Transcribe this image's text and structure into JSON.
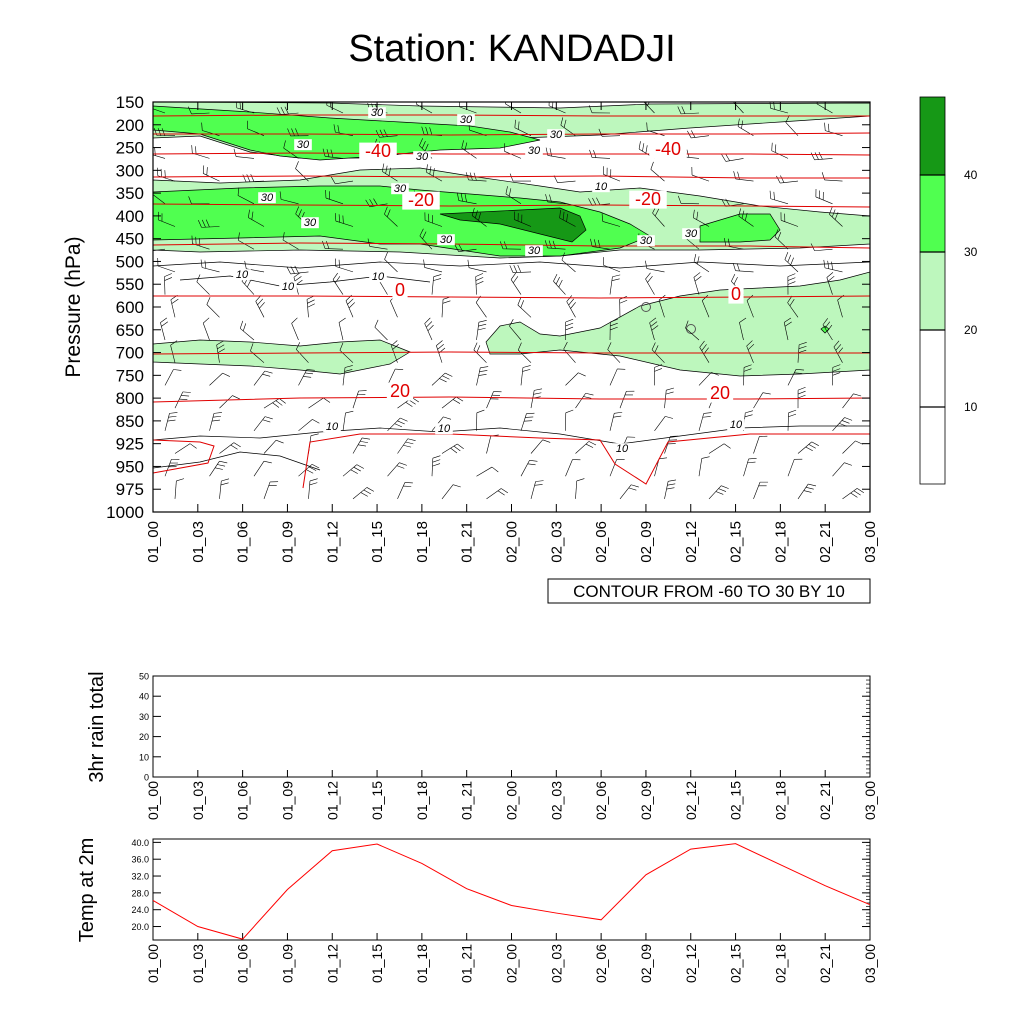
{
  "title": "Station: KANDADJI",
  "chart_data": [
    {
      "type": "heatmap",
      "ylabel": "Pressure (hPa)",
      "y_ticks": [
        150,
        200,
        250,
        300,
        350,
        400,
        450,
        500,
        550,
        600,
        650,
        700,
        750,
        800,
        850,
        925,
        950,
        975,
        1000
      ],
      "x_ticks": [
        "01_00",
        "01_03",
        "01_06",
        "01_09",
        "01_12",
        "01_15",
        "01_18",
        "01_21",
        "02_00",
        "02_03",
        "02_06",
        "02_09",
        "02_12",
        "02_15",
        "02_18",
        "02_21",
        "03_00"
      ],
      "contour_info": "CONTOUR FROM -60 TO 30 BY 10",
      "colorbar": {
        "levels": [
          10,
          20,
          30,
          40
        ],
        "colors": [
          "#ffffff",
          "#ffffff",
          "#bdf7bd",
          "#50ff50",
          "#169816"
        ]
      },
      "temperature_labels": [
        "-40",
        "-40",
        "-20",
        "-20",
        "0",
        "0",
        "20",
        "20"
      ],
      "shading_labels": [
        "30",
        "30",
        "30",
        "30",
        "30",
        "30",
        "30",
        "30",
        "30",
        "30",
        "30",
        "30",
        "30",
        "10",
        "10",
        "10",
        "10",
        "10",
        "10",
        "10",
        "10"
      ]
    },
    {
      "type": "line",
      "ylabel": "3hr rain total",
      "ylim": [
        0,
        50
      ],
      "y_ticks": [
        "0",
        "10",
        "20",
        "30",
        "40",
        "50"
      ],
      "x_ticks": [
        "01_00",
        "01_03",
        "01_06",
        "01_09",
        "01_12",
        "01_15",
        "01_18",
        "01_21",
        "02_00",
        "02_03",
        "02_06",
        "02_09",
        "02_12",
        "02_15",
        "02_18",
        "02_21",
        "03_00"
      ],
      "values": [
        0,
        0,
        0,
        0,
        0,
        0,
        0,
        0,
        0,
        0,
        0,
        0,
        0,
        0,
        0,
        0,
        0
      ]
    },
    {
      "type": "line",
      "ylabel": "Temp at 2m",
      "ylim": [
        16.8,
        40.8
      ],
      "y_ticks": [
        "20.0",
        "24.0",
        "28.0",
        "32.0",
        "36.0",
        "40.0"
      ],
      "x_ticks": [
        "01_00",
        "01_03",
        "01_06",
        "01_09",
        "01_12",
        "01_15",
        "01_18",
        "01_21",
        "02_00",
        "02_03",
        "02_06",
        "02_09",
        "02_12",
        "02_15",
        "02_18",
        "02_21",
        "03_00"
      ],
      "values": [
        26.2,
        20.0,
        17.0,
        28.8,
        38.0,
        39.6,
        35.0,
        29.0,
        25.0,
        23.2,
        21.6,
        32.3,
        38.4,
        39.7,
        34.7,
        29.7,
        25.2
      ],
      "line_color": "#ff0000"
    }
  ]
}
